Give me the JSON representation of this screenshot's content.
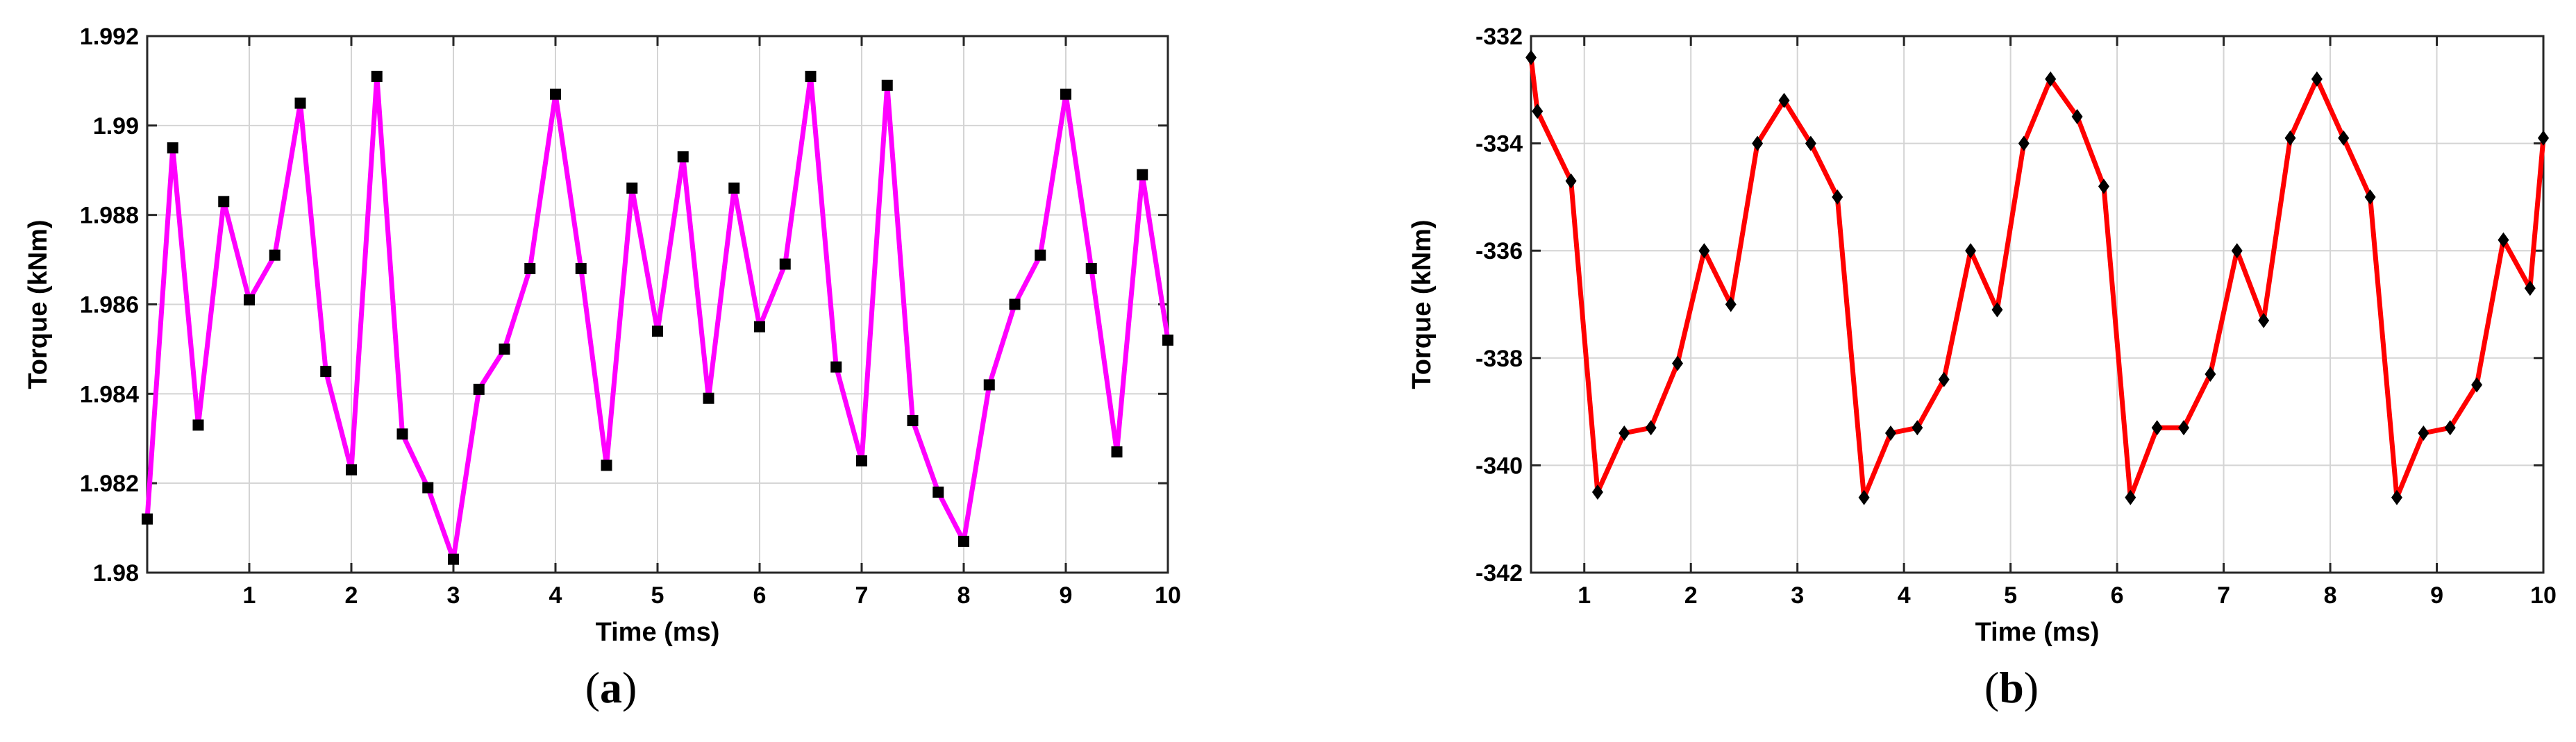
{
  "chart_data": [
    {
      "type": "line",
      "panel_label_prefix": "(",
      "panel_label_letter": "a",
      "panel_label_suffix": ")",
      "xlabel": "Time (ms)",
      "ylabel": "Torque (kNm)",
      "xlim": [
        0,
        10
      ],
      "ylim": [
        1.98,
        1.992
      ],
      "x_ticks": [
        1,
        2,
        3,
        4,
        5,
        6,
        7,
        8,
        9,
        10
      ],
      "y_ticks": [
        1.98,
        1.982,
        1.984,
        1.986,
        1.988,
        1.99,
        1.992
      ],
      "y_tick_labels": [
        "1.98",
        "1.982",
        "1.984",
        "1.986",
        "1.988",
        "1.99",
        "1.992"
      ],
      "grid": true,
      "line_color": "#ff00ff",
      "marker": "square",
      "marker_color": "#000000",
      "series": [
        {
          "x": [
            0,
            0.25,
            0.5,
            0.75,
            1,
            1.25,
            1.5,
            1.75,
            2,
            2.25,
            2.5,
            2.75,
            3,
            3.25,
            3.5,
            3.75,
            4,
            4.25,
            4.5,
            4.75,
            5,
            5.25,
            5.5,
            5.75,
            6,
            6.25,
            6.5,
            6.75,
            7,
            7.25,
            7.5,
            7.75,
            8,
            8.25,
            8.5,
            8.75,
            9,
            9.25,
            9.5,
            9.75,
            10
          ],
          "y": [
            1.9812,
            1.9895,
            1.9833,
            1.9883,
            1.9861,
            1.9871,
            1.9905,
            1.9845,
            1.9823,
            1.9911,
            1.9831,
            1.9819,
            1.9803,
            1.9841,
            1.985,
            1.9868,
            1.9907,
            1.9868,
            1.9824,
            1.9886,
            1.9854,
            1.9893,
            1.9839,
            1.9886,
            1.9855,
            1.9869,
            1.9911,
            1.9846,
            1.9825,
            1.9909,
            1.9834,
            1.9818,
            1.9807,
            1.9842,
            1.986,
            1.9871,
            1.9907,
            1.9868,
            1.9827,
            1.9889,
            1.9852
          ]
        }
      ]
    },
    {
      "type": "line",
      "panel_label_prefix": "(",
      "panel_label_letter": "b",
      "panel_label_suffix": ")",
      "xlabel": "Time (ms)",
      "ylabel": "Torque (kNm)",
      "xlim": [
        0.5,
        10
      ],
      "ylim": [
        -342,
        -332
      ],
      "x_ticks": [
        1,
        2,
        3,
        4,
        5,
        6,
        7,
        8,
        9,
        10
      ],
      "y_ticks": [
        -342,
        -340,
        -338,
        -336,
        -334,
        -332
      ],
      "y_tick_labels": [
        "-342",
        "-340",
        "-338",
        "-336",
        "-334",
        "-332"
      ],
      "grid": true,
      "line_color": "#ff0000",
      "marker": "diamond",
      "marker_color": "#000000",
      "series": [
        {
          "x": [
            0.5,
            0.56,
            0.875,
            1.125,
            1.375,
            1.625,
            1.875,
            2.125,
            2.375,
            2.625,
            2.875,
            3.125,
            3.375,
            3.625,
            3.875,
            4.125,
            4.375,
            4.625,
            4.875,
            5.125,
            5.375,
            5.625,
            5.875,
            6.125,
            6.375,
            6.625,
            6.875,
            7.125,
            7.375,
            7.625,
            7.875,
            8.125,
            8.375,
            8.625,
            8.875,
            9.125,
            9.375,
            9.625,
            9.875,
            10
          ],
          "y": [
            -332.4,
            -333.4,
            -334.7,
            -340.5,
            -339.4,
            -339.3,
            -338.1,
            -336.0,
            -337.0,
            -334.0,
            -333.2,
            -334.0,
            -335.0,
            -340.6,
            -339.4,
            -339.3,
            -338.4,
            -336.0,
            -337.1,
            -334.0,
            -332.8,
            -333.5,
            -334.8,
            -340.6,
            -339.3,
            -339.3,
            -338.3,
            -336.0,
            -337.3,
            -333.9,
            -332.8,
            -333.9,
            -335.0,
            -340.6,
            -339.4,
            -339.3,
            -338.5,
            -335.8,
            -336.7,
            -333.9
          ]
        }
      ]
    }
  ]
}
